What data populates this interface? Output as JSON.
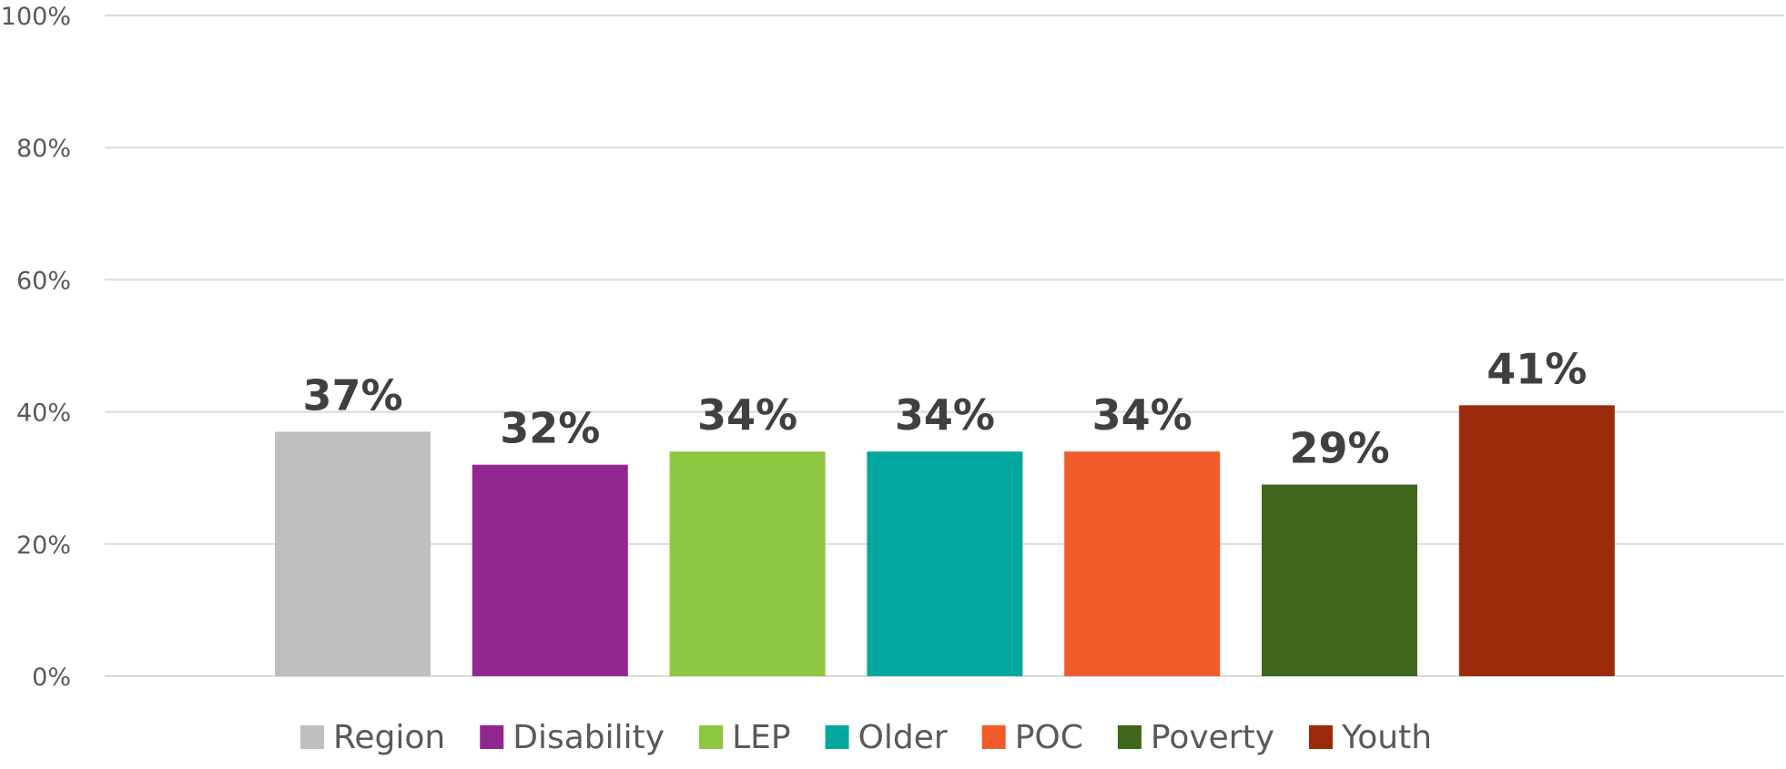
{
  "chart_data": {
    "type": "bar",
    "title": "",
    "xlabel": "",
    "ylabel": "",
    "ylim": [
      0,
      100
    ],
    "yticks": [
      0,
      20,
      40,
      60,
      80,
      100
    ],
    "ytick_labels": [
      "0%",
      "20%",
      "40%",
      "60%",
      "80%",
      "100%"
    ],
    "grid": true,
    "legend_position": "bottom",
    "series": [
      {
        "name": "Region",
        "value": 37,
        "label": "37%",
        "color": "#bfbfbf"
      },
      {
        "name": "Disability",
        "value": 32,
        "label": "32%",
        "color": "#92278f"
      },
      {
        "name": "LEP",
        "value": 34,
        "label": "34%",
        "color": "#8dc63f"
      },
      {
        "name": "Older",
        "value": 34,
        "label": "34%",
        "color": "#00a79d"
      },
      {
        "name": "POC",
        "value": 34,
        "label": "34%",
        "color": "#f15a2b"
      },
      {
        "name": "Poverty",
        "value": 29,
        "label": "29%",
        "color": "#3f671b"
      },
      {
        "name": "Youth",
        "value": 41,
        "label": "41%",
        "color": "#9c2b0c"
      }
    ]
  }
}
